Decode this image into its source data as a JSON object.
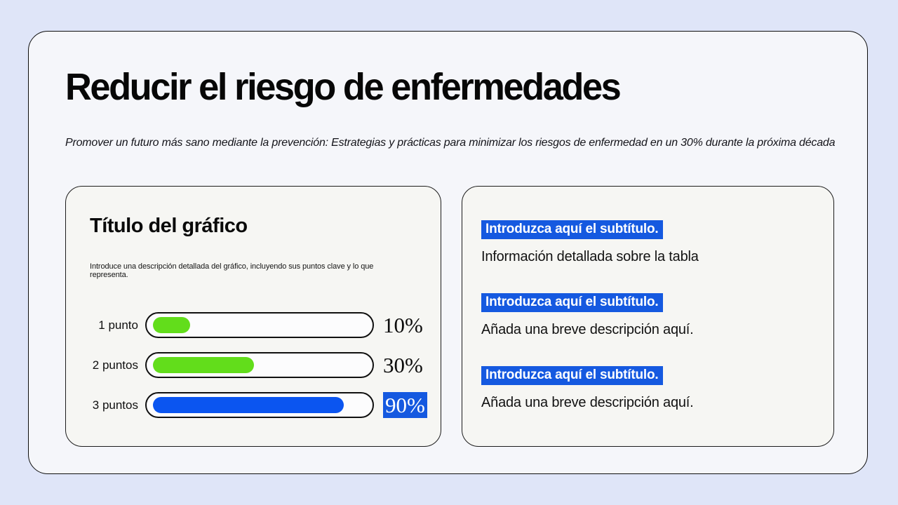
{
  "slide": {
    "title": "Reducir el riesgo de enfermedades",
    "subtitle": "Promover un futuro más sano mediante la prevención: Estrategias y prácticas para minimizar los riesgos de enfermedad en un 30% durante la próxima década"
  },
  "colors": {
    "page_bg": "#dfe5f8",
    "card_bg": "#f5f6fa",
    "panel_bg": "#f6f6f3",
    "accent_green": "#62dd1b",
    "accent_blue": "#0b55f0",
    "highlight_blue": "#1559e0",
    "text_black": "#0d0d0d"
  },
  "chart_panel": {
    "title": "Título del gráfico",
    "description": "Introduce una descripción detallada del gráfico, incluyendo sus puntos clave y lo que representa."
  },
  "chart_data": {
    "type": "bar",
    "orientation": "horizontal",
    "title": "Título del gráfico",
    "categories": [
      "1 punto",
      "2 puntos",
      "3 puntos"
    ],
    "values": [
      10,
      30,
      90
    ],
    "value_labels": [
      "10%",
      "30%",
      "90%"
    ],
    "bar_colors": [
      "#62dd1b",
      "#62dd1b",
      "#0b55f0"
    ],
    "fill_percents_visual": [
      17,
      46,
      87
    ],
    "highlighted_label_index": 2,
    "xlim": [
      0,
      100
    ],
    "grid": false,
    "legend": false
  },
  "info_panel": {
    "sections": [
      {
        "subtitle": "Introduzca aquí el subtítulo.",
        "description": "Información detallada sobre la tabla"
      },
      {
        "subtitle": "Introduzca aquí el subtítulo.",
        "description": "Añada una breve descripción aquí."
      },
      {
        "subtitle": "Introduzca aquí el subtítulo.",
        "description": "Añada una breve descripción aquí."
      }
    ]
  }
}
